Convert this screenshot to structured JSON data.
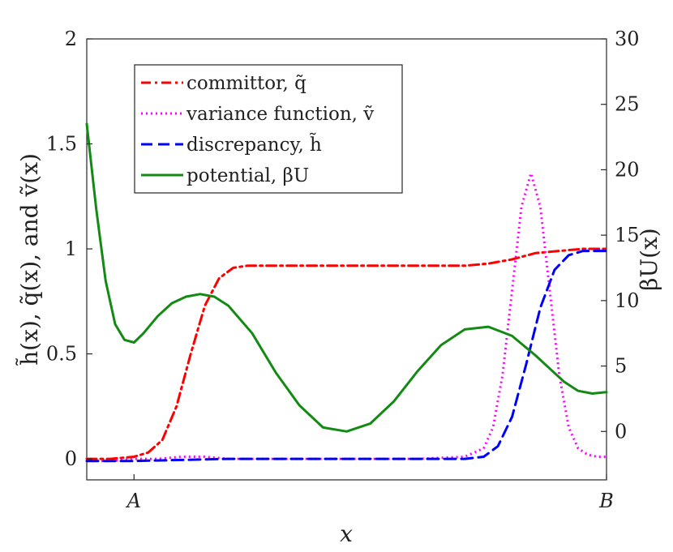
{
  "chart_data": {
    "type": "line",
    "xlabel": "x",
    "ylabel_left": "h̃(x), q̃(x), and ṽ(x)",
    "ylabel_right": "βU(x)",
    "xticks": [
      {
        "x": 0.0,
        "label": "A"
      },
      {
        "x": 1.0,
        "label": "B"
      }
    ],
    "xlim": [
      -0.1,
      1.0
    ],
    "ylim_left": [
      -0.1,
      2.0
    ],
    "yticks_left": [
      {
        "v": 0,
        "label": "0"
      },
      {
        "v": 0.5,
        "label": "0.5"
      },
      {
        "v": 1,
        "label": "1"
      },
      {
        "v": 1.5,
        "label": "1.5"
      },
      {
        "v": 2,
        "label": "2"
      }
    ],
    "ylim_right": [
      -3.7,
      30
    ],
    "yticks_right": [
      {
        "v": 0,
        "label": "0"
      },
      {
        "v": 5,
        "label": "5"
      },
      {
        "v": 10,
        "label": "10"
      },
      {
        "v": 15,
        "label": "15"
      },
      {
        "v": 20,
        "label": "20"
      },
      {
        "v": 25,
        "label": "25"
      },
      {
        "v": 30,
        "label": "30"
      }
    ],
    "grid": false,
    "legend_position": "top-left",
    "series": [
      {
        "name": "committor, q̃",
        "axis": "left",
        "color": "#ff0000",
        "style": "dashdot",
        "x": [
          -0.1,
          -0.05,
          0.0,
          0.03,
          0.06,
          0.09,
          0.12,
          0.15,
          0.18,
          0.21,
          0.24,
          0.27,
          0.3,
          0.35,
          0.45,
          0.6,
          0.7,
          0.75,
          0.8,
          0.85,
          0.9,
          0.95,
          1.0
        ],
        "y": [
          0.0,
          0.0,
          0.01,
          0.03,
          0.09,
          0.25,
          0.5,
          0.73,
          0.86,
          0.91,
          0.92,
          0.92,
          0.92,
          0.92,
          0.92,
          0.92,
          0.92,
          0.93,
          0.95,
          0.98,
          0.99,
          1.0,
          1.0
        ]
      },
      {
        "name": "variance function, ṽ",
        "axis": "left",
        "color": "#ff00ff",
        "style": "dotted",
        "x": [
          -0.1,
          -0.05,
          0.0,
          0.05,
          0.1,
          0.15,
          0.2,
          0.4,
          0.6,
          0.7,
          0.74,
          0.76,
          0.78,
          0.8,
          0.82,
          0.84,
          0.86,
          0.88,
          0.9,
          0.92,
          0.94,
          0.96,
          0.98,
          1.0
        ],
        "y": [
          -0.01,
          -0.01,
          0.0,
          0.0,
          0.01,
          0.01,
          0.0,
          0.0,
          0.0,
          0.01,
          0.05,
          0.15,
          0.4,
          0.8,
          1.2,
          1.36,
          1.2,
          0.8,
          0.4,
          0.15,
          0.05,
          0.02,
          0.01,
          0.01
        ]
      },
      {
        "name": "discrepancy, h̃",
        "axis": "left",
        "color": "#0000ff",
        "style": "dashed",
        "x": [
          -0.1,
          0.0,
          0.2,
          0.5,
          0.7,
          0.74,
          0.77,
          0.8,
          0.83,
          0.86,
          0.89,
          0.92,
          0.95,
          1.0
        ],
        "y": [
          -0.01,
          -0.01,
          0.0,
          0.0,
          0.0,
          0.01,
          0.06,
          0.2,
          0.45,
          0.72,
          0.9,
          0.97,
          0.99,
          0.99
        ]
      },
      {
        "name": "potential, βU",
        "axis": "right",
        "color": "#138a13",
        "style": "solid",
        "x": [
          -0.1,
          -0.08,
          -0.06,
          -0.04,
          -0.02,
          0.0,
          0.02,
          0.05,
          0.08,
          0.11,
          0.14,
          0.17,
          0.2,
          0.25,
          0.3,
          0.35,
          0.4,
          0.45,
          0.5,
          0.55,
          0.6,
          0.65,
          0.7,
          0.75,
          0.8,
          0.85,
          0.88,
          0.91,
          0.94,
          0.97,
          1.0
        ],
        "y": [
          23.5,
          17.0,
          11.5,
          8.2,
          7.0,
          6.8,
          7.5,
          8.8,
          9.8,
          10.3,
          10.5,
          10.3,
          9.6,
          7.5,
          4.5,
          2.0,
          0.3,
          0.0,
          0.6,
          2.3,
          4.6,
          6.6,
          7.8,
          8.0,
          7.3,
          5.8,
          4.8,
          3.8,
          3.1,
          2.9,
          3.0
        ]
      }
    ]
  }
}
